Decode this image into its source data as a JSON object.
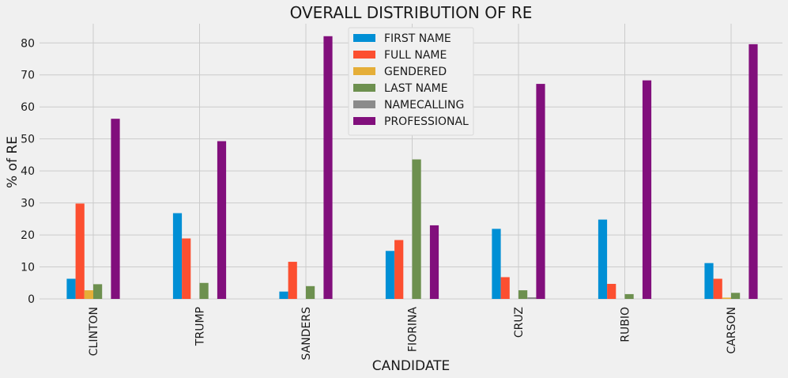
{
  "chart_data": {
    "type": "bar",
    "title": "OVERALL DISTRIBUTION OF RE",
    "xlabel": "CANDIDATE",
    "ylabel": "% of RE",
    "ylim": [
      0,
      86
    ],
    "yticks": [
      0,
      10,
      20,
      30,
      40,
      50,
      60,
      70,
      80
    ],
    "grid": true,
    "legend_position": "top-center",
    "categories": [
      "CLINTON",
      "TRUMP",
      "SANDERS",
      "FIORINA",
      "CRUZ",
      "RUBIO",
      "CARSON"
    ],
    "series": [
      {
        "name": "FIRST NAME",
        "color": "#008fd5",
        "values": [
          6.3,
          26.8,
          2.3,
          15.0,
          21.9,
          24.8,
          11.2
        ]
      },
      {
        "name": "FULL NAME",
        "color": "#fc4f30",
        "values": [
          29.8,
          18.9,
          11.6,
          18.4,
          6.8,
          4.7,
          6.3
        ]
      },
      {
        "name": "GENDERED",
        "color": "#e5ae38",
        "values": [
          2.7,
          0,
          0,
          0,
          0,
          0,
          0.4
        ]
      },
      {
        "name": "LAST NAME",
        "color": "#6d904f",
        "values": [
          4.6,
          5.0,
          4.0,
          43.6,
          2.7,
          1.5,
          1.9
        ]
      },
      {
        "name": "NAMECALLING",
        "color": "#8b8b8b",
        "values": [
          0,
          0,
          0,
          0,
          0.5,
          0,
          0
        ]
      },
      {
        "name": "PROFESSIONAL",
        "color": "#810f7c",
        "values": [
          56.3,
          49.3,
          82.1,
          23.0,
          67.2,
          68.3,
          79.6
        ]
      }
    ]
  }
}
